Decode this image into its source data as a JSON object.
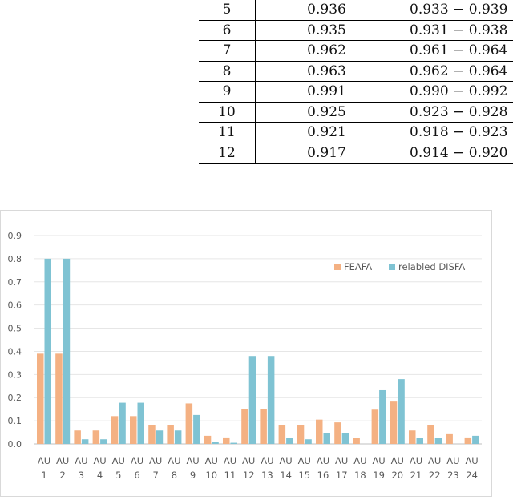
{
  "table": {
    "rows": [
      [
        "5",
        "0.936",
        "0.933 − 0.939"
      ],
      [
        "6",
        "0.935",
        "0.931 − 0.938"
      ],
      [
        "7",
        "0.962",
        "0.961 − 0.964"
      ],
      [
        "8",
        "0.963",
        "0.962 − 0.964"
      ],
      [
        "9",
        "0.991",
        "0.990 − 0.992"
      ],
      [
        "10",
        "0.925",
        "0.923 − 0.928"
      ],
      [
        "11",
        "0.921",
        "0.918 − 0.923"
      ],
      [
        "12",
        "0.917",
        "0.914 − 0.920"
      ]
    ]
  },
  "chart_data": {
    "type": "bar",
    "categories": [
      "1",
      "2",
      "3",
      "4",
      "5",
      "6",
      "7",
      "8",
      "9",
      "10",
      "11",
      "12",
      "13",
      "14",
      "15",
      "16",
      "17",
      "18",
      "19",
      "20",
      "21",
      "22",
      "23",
      "24"
    ],
    "category_prefix": "AU",
    "series": [
      {
        "name": "FEAFA",
        "color": "#F4B183",
        "values": [
          0.39,
          0.39,
          0.058,
          0.058,
          0.12,
          0.12,
          0.08,
          0.08,
          0.175,
          0.035,
          0.028,
          0.15,
          0.15,
          0.083,
          0.083,
          0.105,
          0.093,
          0.027,
          0.148,
          0.183,
          0.058,
          0.083,
          0.042,
          0.028
        ]
      },
      {
        "name": "relabled DISFA",
        "color": "#7FC3D3",
        "values": [
          0.8,
          0.8,
          0.02,
          0.02,
          0.178,
          0.178,
          0.058,
          0.058,
          0.125,
          0.008,
          0.005,
          0.38,
          0.38,
          0.025,
          0.02,
          0.048,
          0.048,
          0.0,
          0.232,
          0.28,
          0.025,
          0.025,
          0.0,
          0.035
        ]
      }
    ],
    "yticks": [
      "0.0",
      "0.1",
      "0.2",
      "0.3",
      "0.4",
      "0.5",
      "0.6",
      "0.7",
      "0.8",
      "0.9"
    ],
    "ylim": [
      0,
      0.9
    ],
    "grid": true,
    "legend": "top-right"
  }
}
